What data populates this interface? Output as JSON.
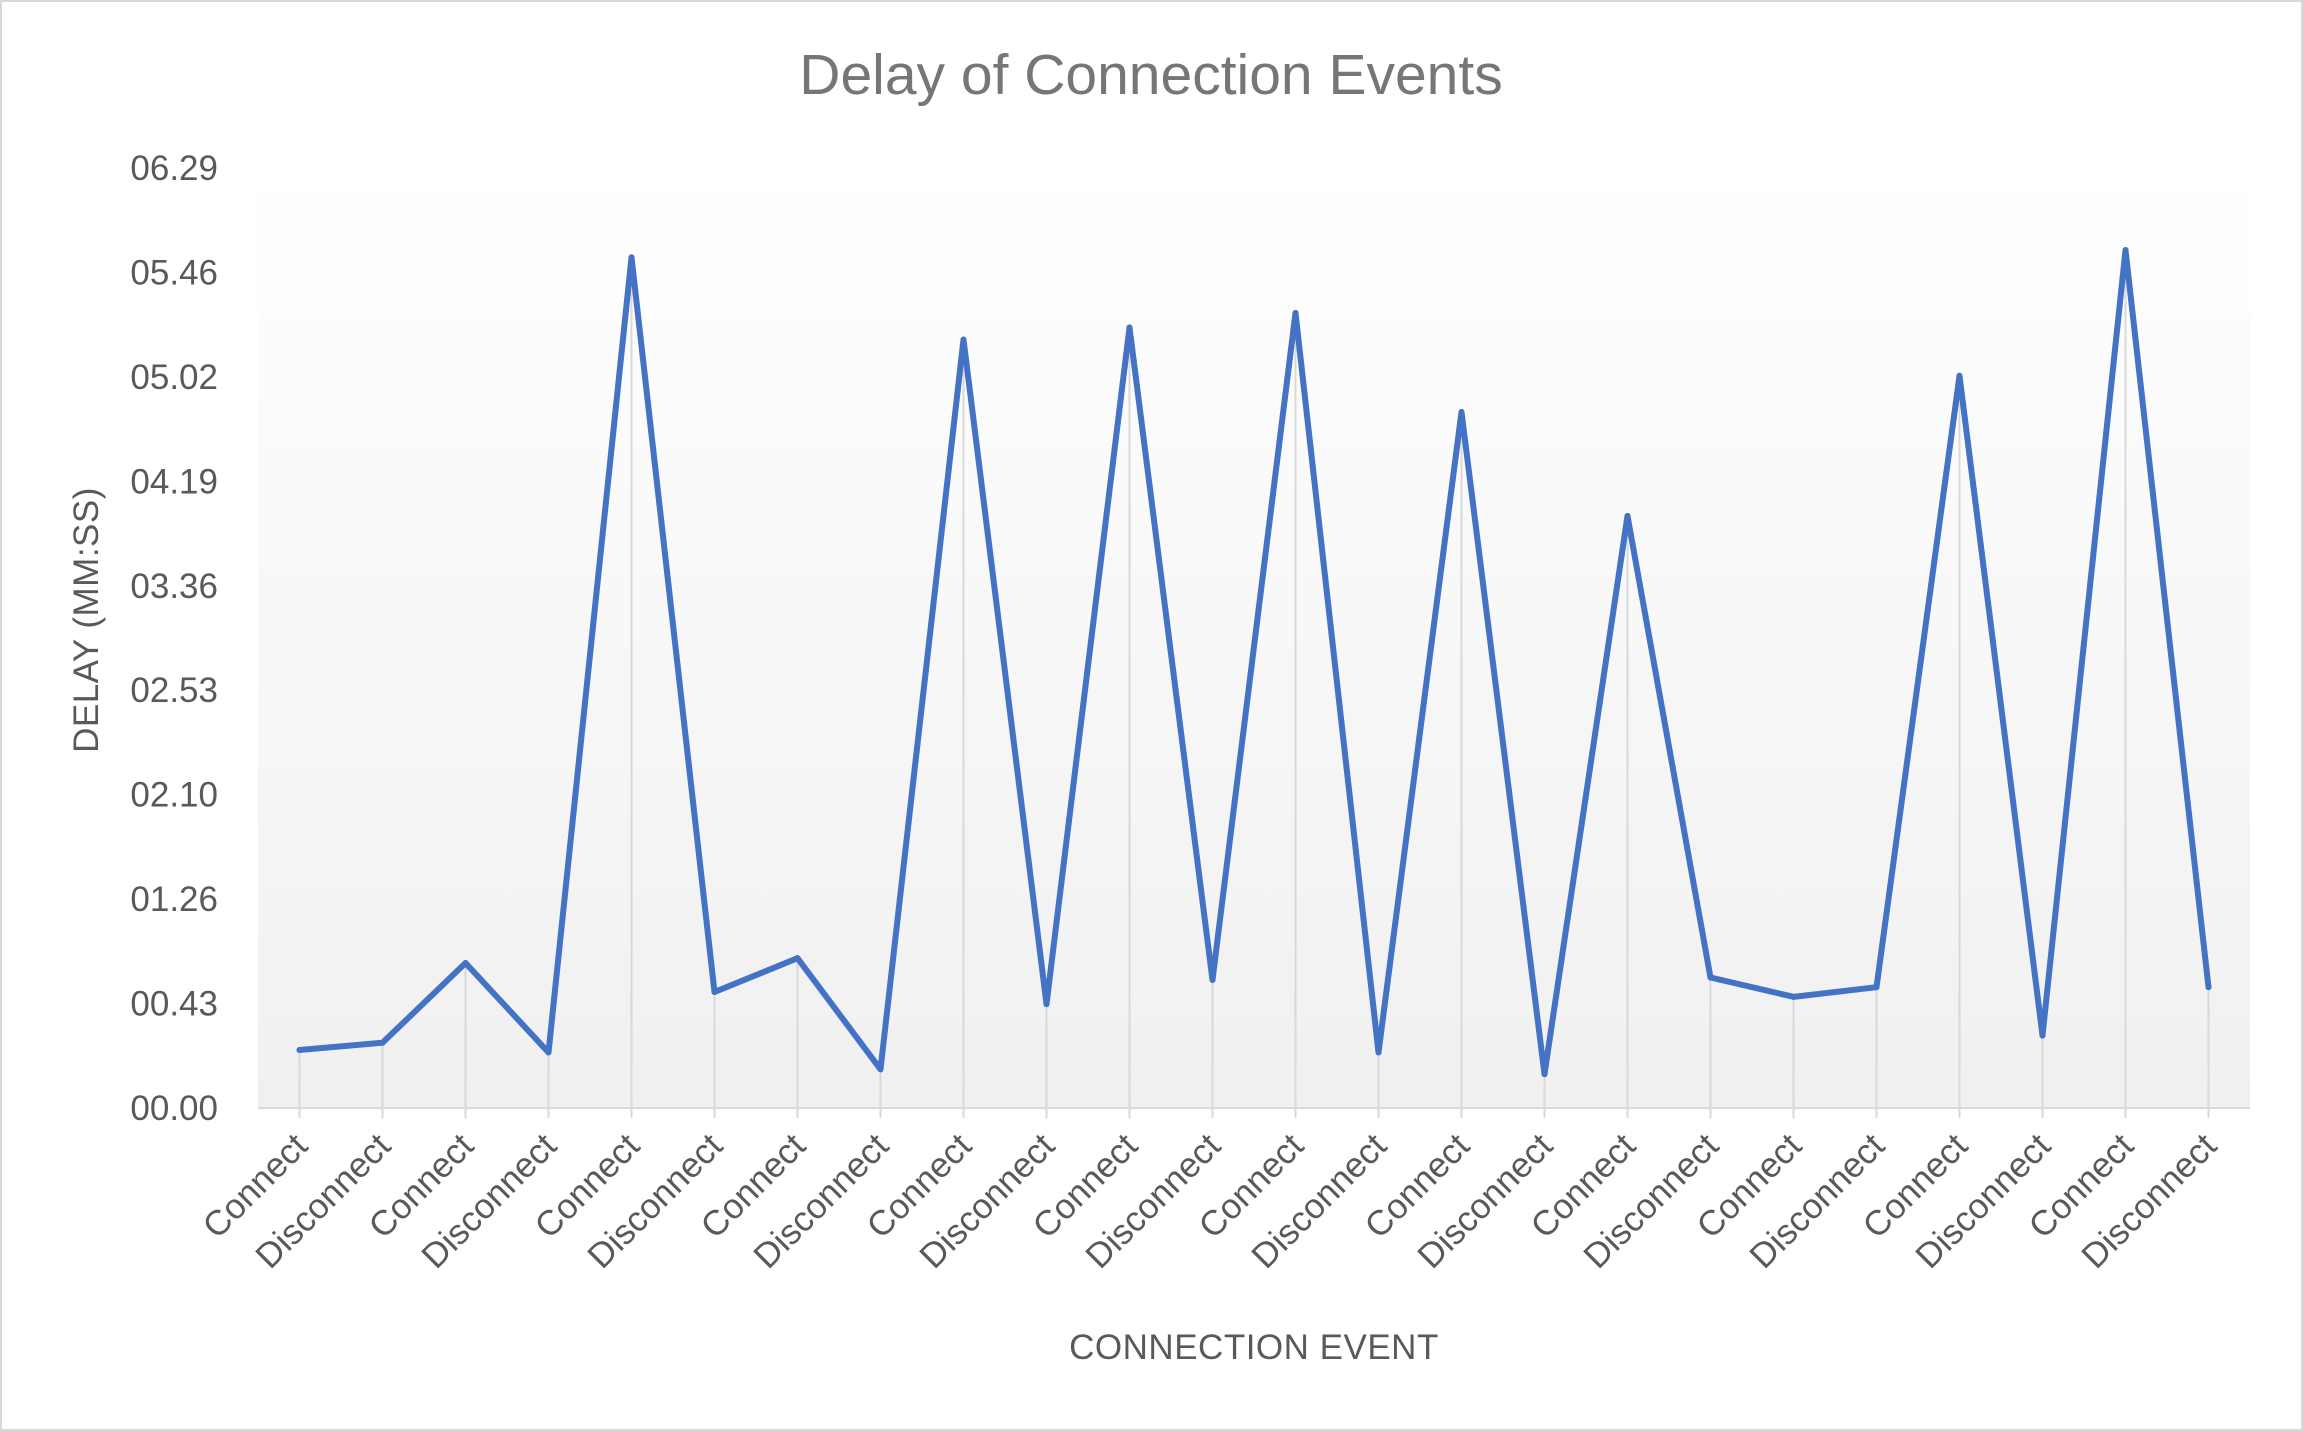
{
  "chart_data": {
    "type": "line",
    "title": "Delay of Connection Events",
    "xlabel": "CONNECTION EVENT",
    "ylabel": "DELAY (MM:SS)",
    "y_tick_labels": [
      "00.00",
      "00.43",
      "01.26",
      "02.10",
      "02.53",
      "03.36",
      "04.19",
      "05.02",
      "05.46",
      "06.29"
    ],
    "ylim": [
      0,
      389
    ],
    "grid": "vertical",
    "legend": "none",
    "categories": [
      "Connect",
      "Disconnect",
      "Connect",
      "Disconnect",
      "Connect",
      "Disconnect",
      "Connect",
      "Disconnect",
      "Connect",
      "Disconnect",
      "Connect",
      "Disconnect",
      "Connect",
      "Disconnect",
      "Connect",
      "Disconnect",
      "Connect",
      "Disconnect",
      "Connect",
      "Disconnect",
      "Connect",
      "Disconnect",
      "Connect",
      "Disconnect"
    ],
    "series": [
      {
        "values": [
          24,
          27,
          60,
          23,
          352,
          48,
          62,
          16,
          318,
          43,
          323,
          53,
          329,
          23,
          288,
          14,
          245,
          54,
          46,
          50,
          303,
          30,
          355,
          50
        ],
        "color": "#4472c4"
      }
    ]
  }
}
